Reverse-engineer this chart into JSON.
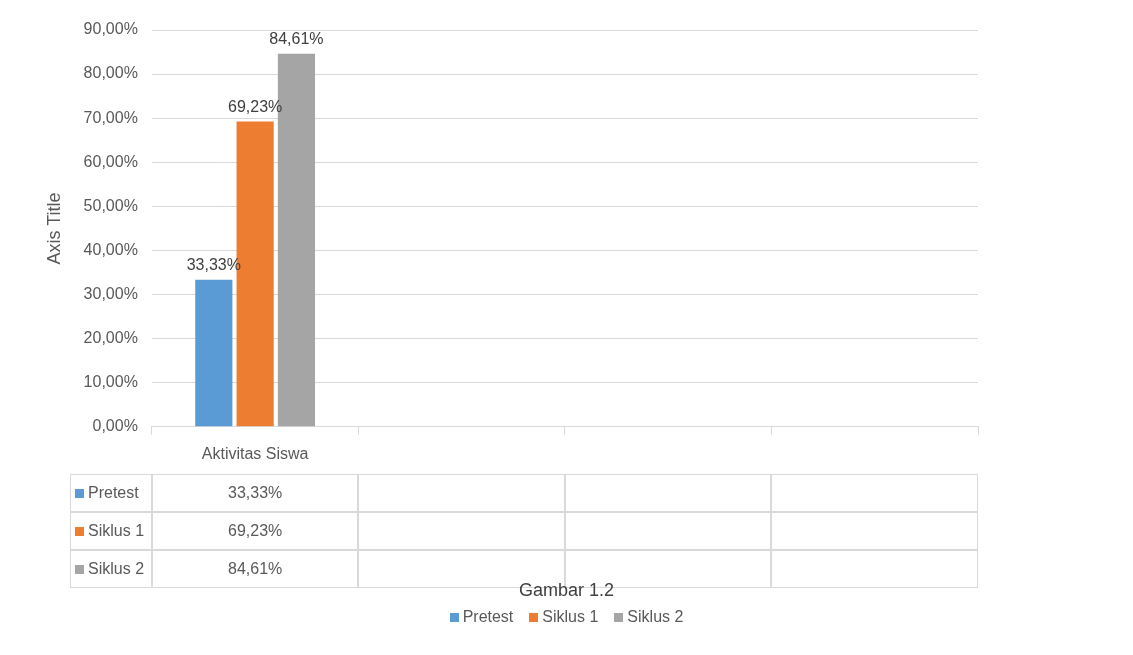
{
  "chart_data": {
    "type": "bar",
    "ylabel": "Axis Title",
    "categories": [
      "Aktivitas Siswa",
      null,
      null,
      null
    ],
    "series": [
      {
        "name": "Pretest",
        "color": "#5b9bd5",
        "values": [
          33.33,
          null,
          null,
          null
        ],
        "value_labels": [
          "33,33%",
          null,
          null,
          null
        ]
      },
      {
        "name": "Siklus 1",
        "color": "#ed7d31",
        "values": [
          69.23,
          null,
          null,
          null
        ],
        "value_labels": [
          "69,23%",
          null,
          null,
          null
        ]
      },
      {
        "name": "Siklus 2",
        "color": "#a5a5a5",
        "values": [
          84.61,
          null,
          null,
          null
        ],
        "value_labels": [
          "84,61%",
          null,
          null,
          null
        ]
      }
    ],
    "ylim": [
      0,
      90
    ],
    "yticks": [
      {
        "value": 0,
        "label": "0,00%"
      },
      {
        "value": 10,
        "label": "10,00%"
      },
      {
        "value": 20,
        "label": "20,00%"
      },
      {
        "value": 30,
        "label": "30,00%"
      },
      {
        "value": 40,
        "label": "40,00%"
      },
      {
        "value": 50,
        "label": "50,00%"
      },
      {
        "value": 60,
        "label": "60,00%"
      },
      {
        "value": 70,
        "label": "70,00%"
      },
      {
        "value": 80,
        "label": "80,00%"
      },
      {
        "value": 90,
        "label": "90,00%"
      }
    ],
    "grid": "y",
    "legend": "bottom",
    "annotations": [
      "Gambar 1.2"
    ]
  }
}
